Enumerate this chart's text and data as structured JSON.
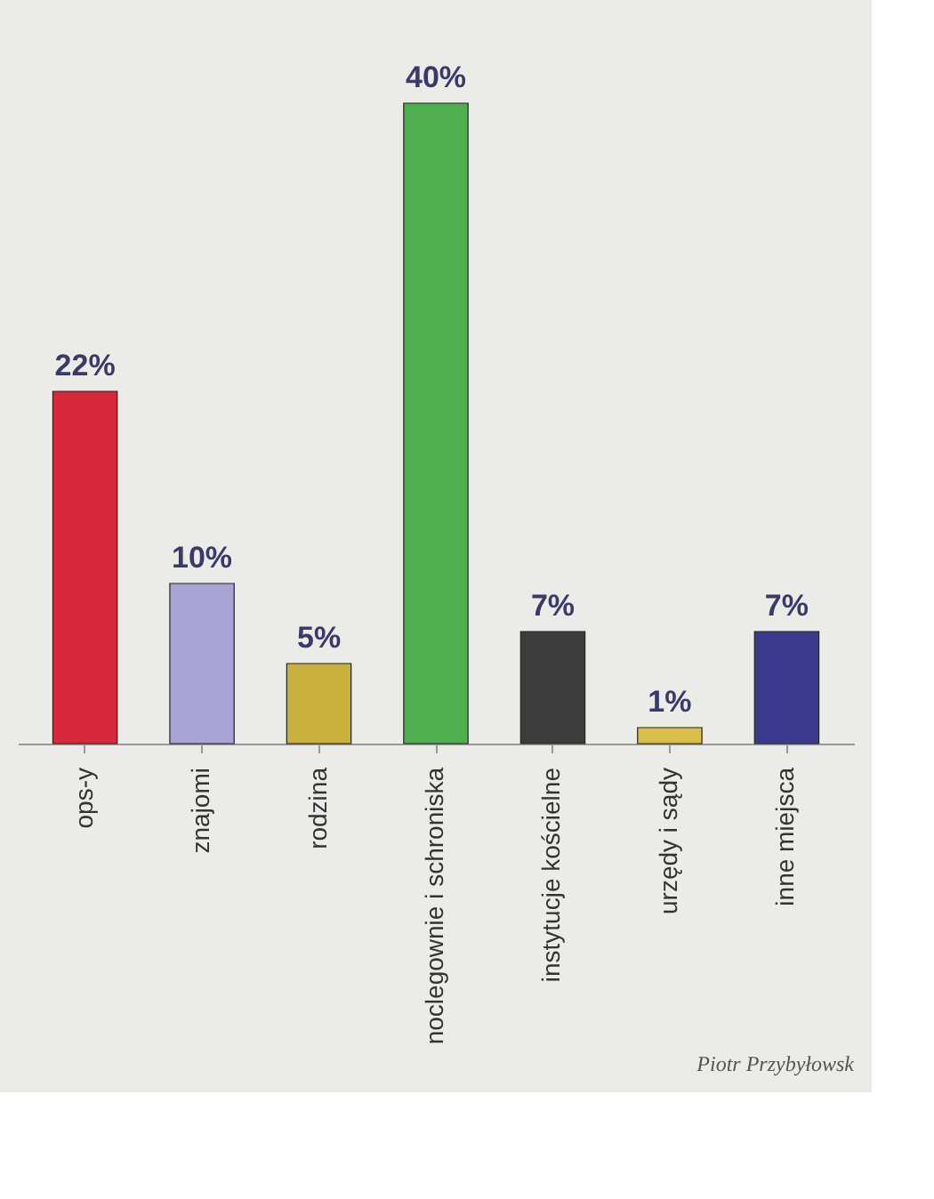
{
  "chart_data": {
    "type": "bar",
    "categories": [
      "ops-y",
      "znajomi",
      "rodzina",
      "noclegownie i schroniska",
      "instytucje kościelne",
      "urzędy i sądy",
      "inne miejsca"
    ],
    "values": [
      22,
      10,
      5,
      40,
      7,
      1,
      7
    ],
    "colors": [
      "#d62a3c",
      "#a9a3d6",
      "#c9b13e",
      "#4fae4f",
      "#3c3c3c",
      "#d8c04a",
      "#3b3a8e"
    ],
    "value_labels": [
      "22%",
      "10%",
      "5%",
      "40%",
      "7%",
      "1%",
      "7%"
    ],
    "grid": false,
    "annotations": [
      "Piotr Przybyłowsk"
    ]
  }
}
